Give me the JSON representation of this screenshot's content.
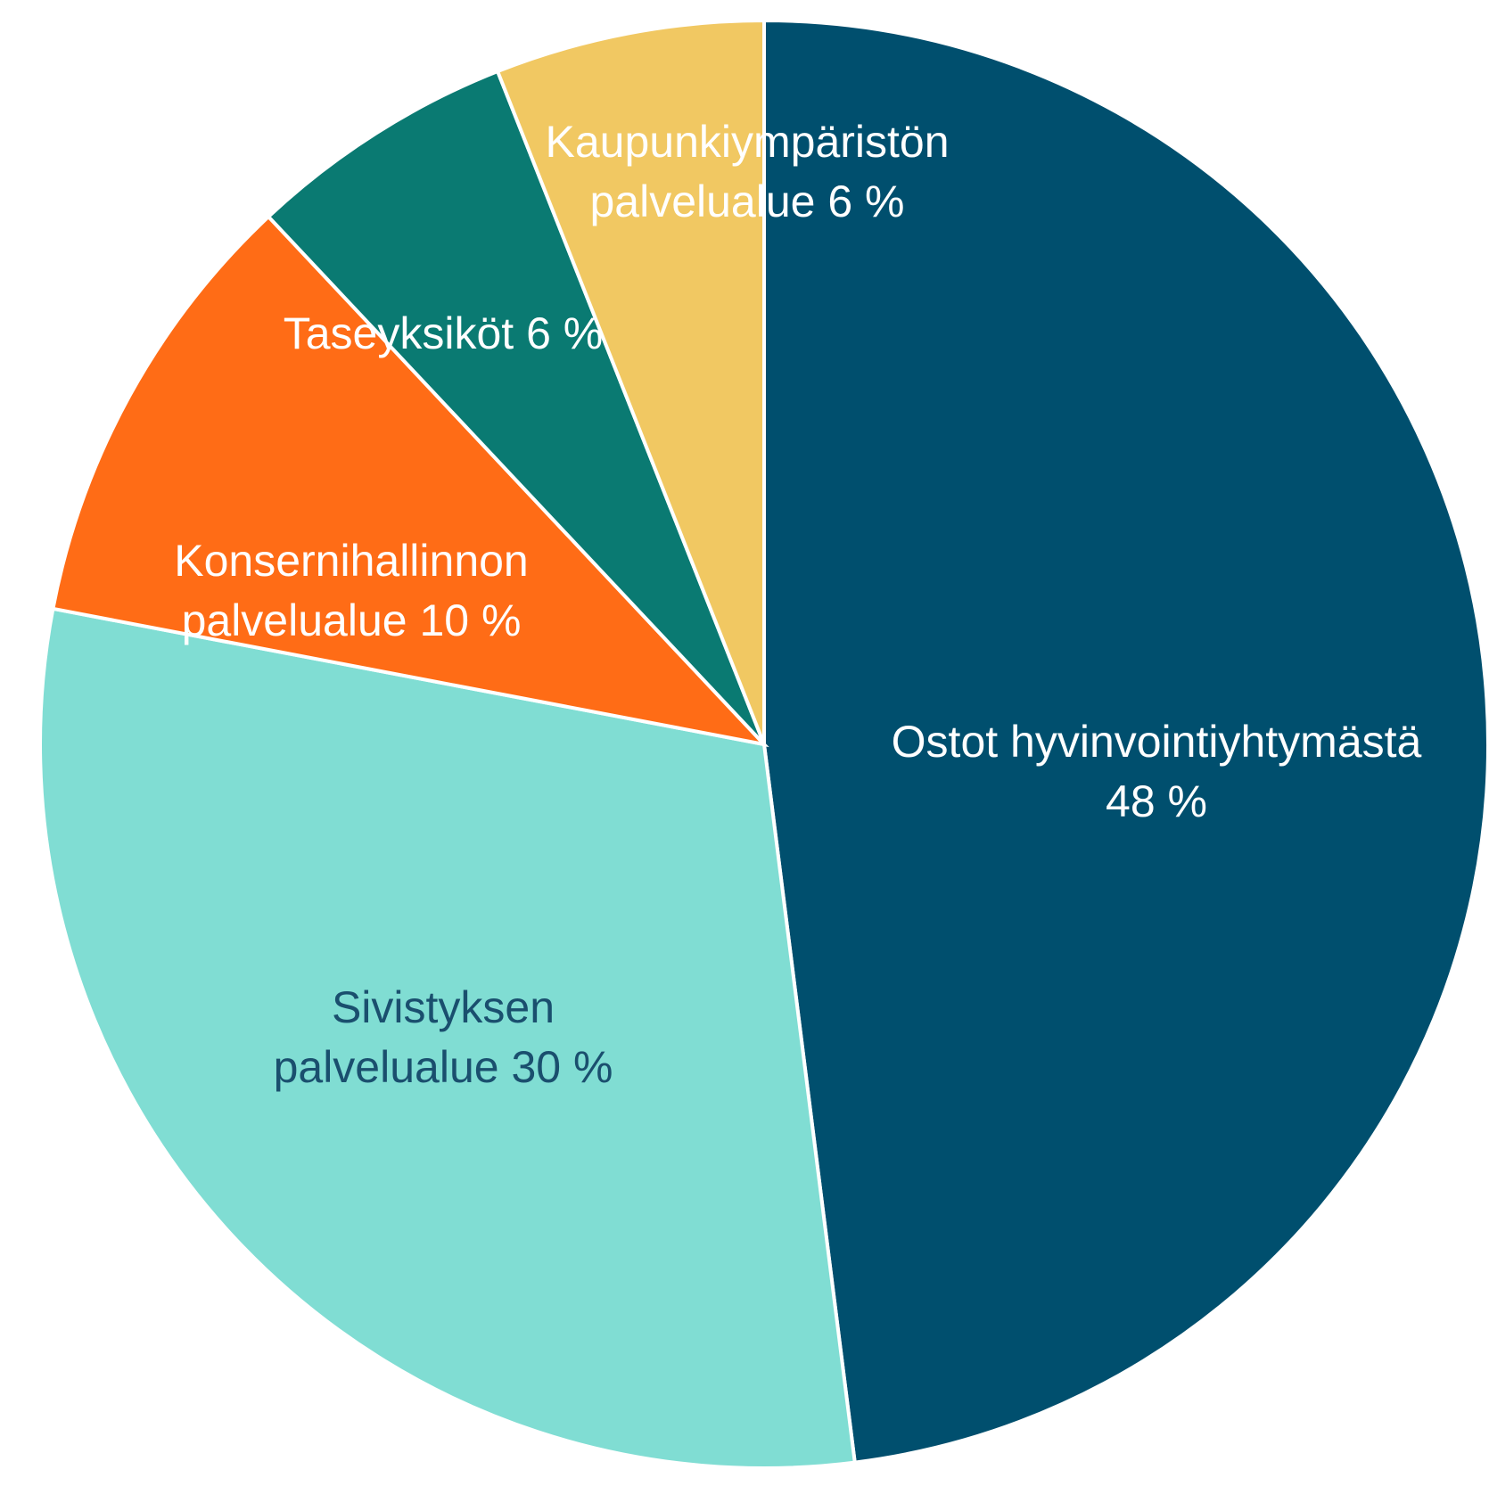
{
  "chart_data": {
    "type": "pie",
    "labels": [
      [
        "Ostot hyvinvointiyhtymästä",
        "48 %"
      ],
      [
        "Sivistyksen",
        "palvelualue 30 %"
      ],
      [
        "Konsernihallinnon",
        "palvelualue 10 %"
      ],
      [
        "Taseyksiköt 6 %"
      ],
      [
        "Kaupunkiympäristön",
        "palvelualue 6 %"
      ]
    ],
    "values": [
      48,
      30,
      10,
      6,
      6
    ],
    "colors": [
      "#004f6e",
      "#80ddd3",
      "#ff6c16",
      "#0a7a72",
      "#f1c862"
    ],
    "label_colors": [
      "#ffffff",
      "#1a4f6e",
      "#ffffff",
      "#ffffff",
      "#ffffff"
    ]
  }
}
